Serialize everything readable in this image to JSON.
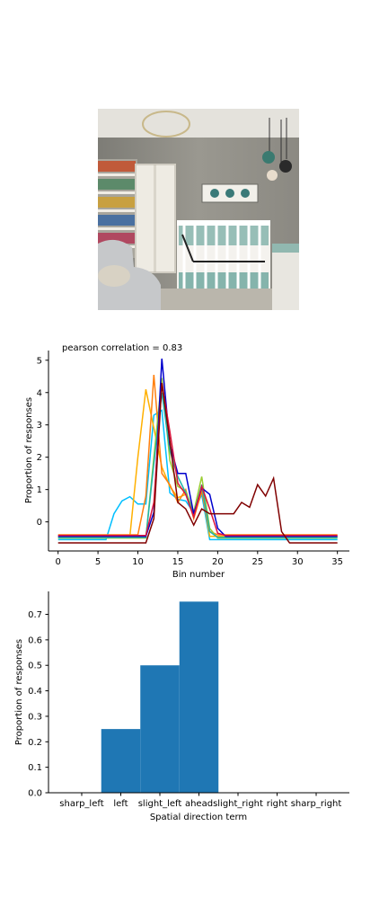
{
  "photo": {
    "description_icon": "nursery-room-photo-icon"
  },
  "chart_data": [
    {
      "type": "line",
      "title": "pearson correlation = 0.83",
      "xlabel": "Bin number",
      "ylabel": "Proportion of responses",
      "xlim": [
        -1.2,
        36.5
      ],
      "ylim": [
        -0.9,
        5.3
      ],
      "xticks": [
        0,
        5,
        10,
        15,
        20,
        25,
        30,
        35
      ],
      "yticks": [
        0,
        1,
        2,
        3,
        4,
        5
      ],
      "grid": false,
      "x": [
        0,
        1,
        2,
        3,
        4,
        5,
        6,
        7,
        8,
        9,
        10,
        11,
        12,
        13,
        14,
        15,
        16,
        17,
        18,
        19,
        20,
        21,
        22,
        23,
        24,
        25,
        26,
        27,
        28,
        29,
        30,
        31,
        32,
        33,
        34,
        35
      ],
      "series": [
        {
          "color": "#00bfff",
          "values": [
            -0.55,
            -0.55,
            -0.55,
            -0.55,
            -0.55,
            -0.55,
            -0.55,
            0.25,
            0.65,
            0.78,
            0.55,
            0.55,
            3.3,
            3.45,
            0.9,
            0.7,
            0.65,
            0.28,
            0.85,
            -0.55,
            -0.55,
            -0.55,
            -0.55,
            -0.55,
            -0.55,
            -0.55,
            -0.55,
            -0.55,
            -0.55,
            -0.55,
            -0.55,
            -0.55,
            -0.55,
            -0.55,
            -0.55,
            -0.55
          ]
        },
        {
          "color": "#ffb000",
          "values": [
            -0.45,
            -0.45,
            -0.45,
            -0.45,
            -0.45,
            -0.45,
            -0.45,
            -0.45,
            -0.45,
            -0.45,
            2.0,
            4.1,
            2.9,
            1.7,
            1.1,
            0.75,
            0.85,
            0.3,
            1.05,
            -0.45,
            -0.45,
            -0.45,
            -0.45,
            -0.45,
            -0.45,
            -0.45,
            -0.45,
            -0.45,
            -0.45,
            -0.45,
            -0.45,
            -0.45,
            -0.45,
            -0.45,
            -0.45,
            -0.45
          ]
        },
        {
          "color": "#ff7f0e",
          "values": [
            -0.4,
            -0.4,
            -0.4,
            -0.4,
            -0.4,
            -0.4,
            -0.4,
            -0.4,
            -0.4,
            -0.4,
            -0.4,
            0.8,
            4.55,
            1.5,
            1.15,
            0.6,
            1.0,
            0.1,
            0.95,
            -0.3,
            -0.4,
            -0.4,
            -0.4,
            -0.4,
            -0.4,
            -0.4,
            -0.4,
            -0.4,
            -0.4,
            -0.4,
            -0.4,
            -0.4,
            -0.4,
            -0.4,
            -0.4,
            -0.4
          ]
        },
        {
          "color": "#9acd32",
          "values": [
            -0.5,
            -0.5,
            -0.5,
            -0.5,
            -0.5,
            -0.5,
            -0.5,
            -0.5,
            -0.5,
            -0.5,
            -0.5,
            -0.5,
            2.0,
            4.45,
            1.9,
            1.1,
            0.95,
            0.3,
            1.4,
            -0.2,
            -0.5,
            -0.5,
            -0.5,
            -0.5,
            -0.5,
            -0.5,
            -0.5,
            -0.5,
            -0.5,
            -0.5,
            -0.5,
            -0.5,
            -0.5,
            -0.5,
            -0.5,
            -0.5
          ]
        },
        {
          "color": "#20b2aa",
          "values": [
            -0.48,
            -0.48,
            -0.48,
            -0.48,
            -0.48,
            -0.48,
            -0.48,
            -0.48,
            -0.48,
            -0.48,
            -0.48,
            -0.48,
            1.8,
            4.0,
            2.2,
            1.4,
            0.9,
            0.2,
            1.15,
            -0.3,
            -0.48,
            -0.48,
            -0.48,
            -0.48,
            -0.48,
            -0.48,
            -0.48,
            -0.48,
            -0.48,
            -0.48,
            -0.48,
            -0.48,
            -0.48,
            -0.48,
            -0.48,
            -0.48
          ]
        },
        {
          "color": "#0000cd",
          "values": [
            -0.45,
            -0.45,
            -0.45,
            -0.45,
            -0.45,
            -0.45,
            -0.45,
            -0.45,
            -0.45,
            -0.45,
            -0.45,
            -0.45,
            0.3,
            5.05,
            2.4,
            1.5,
            1.5,
            0.25,
            1.05,
            0.85,
            -0.2,
            -0.45,
            -0.45,
            -0.45,
            -0.45,
            -0.45,
            -0.45,
            -0.45,
            -0.45,
            -0.45,
            -0.45,
            -0.45,
            -0.45,
            -0.45,
            -0.45,
            -0.45
          ]
        },
        {
          "color": "#dc143c",
          "values": [
            -0.42,
            -0.42,
            -0.42,
            -0.42,
            -0.42,
            -0.42,
            -0.42,
            -0.42,
            -0.42,
            -0.42,
            -0.42,
            -0.42,
            0.6,
            4.3,
            2.8,
            1.2,
            0.85,
            0.15,
            1.1,
            0.4,
            -0.35,
            -0.42,
            -0.42,
            -0.42,
            -0.42,
            -0.42,
            -0.42,
            -0.42,
            -0.42,
            -0.42,
            -0.42,
            -0.42,
            -0.42,
            -0.42,
            -0.42,
            -0.42
          ]
        },
        {
          "color": "#800000",
          "values": [
            -0.65,
            -0.65,
            -0.65,
            -0.65,
            -0.65,
            -0.65,
            -0.65,
            -0.65,
            -0.65,
            -0.65,
            -0.65,
            -0.65,
            0.1,
            4.3,
            2.5,
            0.6,
            0.4,
            -0.1,
            0.4,
            0.25,
            0.25,
            0.25,
            0.25,
            0.6,
            0.45,
            1.15,
            0.8,
            1.35,
            -0.3,
            -0.65,
            -0.65,
            -0.65,
            -0.65,
            -0.65,
            -0.65,
            -0.65
          ]
        }
      ]
    },
    {
      "type": "bar",
      "xlabel": "Spatial direction term",
      "ylabel": "Proportion of responses",
      "ylim": [
        0,
        0.79
      ],
      "yticks": [
        0.0,
        0.1,
        0.2,
        0.3,
        0.4,
        0.5,
        0.6,
        0.7
      ],
      "yticklabels": [
        "0.0",
        "0.1",
        "0.2",
        "0.3",
        "0.4",
        "0.5",
        "0.6",
        "0.7"
      ],
      "categories": [
        "sharp_left",
        "left",
        "slight_left",
        "ahead",
        "slight_right",
        "right",
        "sharp_right"
      ],
      "values": [
        0,
        0.25,
        0.5,
        0.75,
        0,
        0,
        0
      ],
      "color": "#1f77b4",
      "grid": false
    }
  ]
}
